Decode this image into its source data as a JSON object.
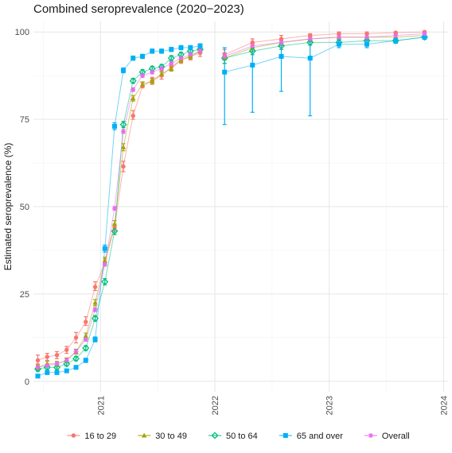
{
  "chart_data": {
    "type": "line",
    "title": "Combined seroprevalence (2020−2023)",
    "xlabel": "",
    "ylabel": "Estimated seroprevalence (%)",
    "x_axis": {
      "type": "date",
      "min": "2020-06-01",
      "max": "2024-01-15",
      "ticks": [
        "2021",
        "2022",
        "2023",
        "2024"
      ],
      "tick_dates": [
        "2021-01-01",
        "2022-01-01",
        "2023-01-01",
        "2024-01-01"
      ]
    },
    "y_axis": {
      "min": -3,
      "max": 103,
      "ticks": [
        0,
        25,
        50,
        75,
        100
      ]
    },
    "grid": true,
    "legend": {
      "position": "bottom"
    },
    "series": [
      {
        "name": "16 to 29",
        "color": "#F8766D",
        "marker": "circle",
        "points": [
          {
            "x": "2020-06-15",
            "y": 6,
            "lo": 5,
            "hi": 7.5
          },
          {
            "x": "2020-07-15",
            "y": 7,
            "lo": 6,
            "hi": 8
          },
          {
            "x": "2020-08-15",
            "y": 7.5,
            "lo": 6.5,
            "hi": 8.5
          },
          {
            "x": "2020-09-15",
            "y": 9,
            "lo": 8,
            "hi": 10
          },
          {
            "x": "2020-10-15",
            "y": 12.5,
            "lo": 11,
            "hi": 14
          },
          {
            "x": "2020-11-15",
            "y": 17,
            "lo": 16,
            "hi": 18.5
          },
          {
            "x": "2020-12-15",
            "y": 27,
            "lo": 26,
            "hi": 28.5
          },
          {
            "x": "2021-01-15",
            "y": 34,
            "lo": 33,
            "hi": 35
          },
          {
            "x": "2021-02-15",
            "y": 44,
            "lo": 43,
            "hi": 45
          },
          {
            "x": "2021-03-15",
            "y": 61.5,
            "lo": 60,
            "hi": 63
          },
          {
            "x": "2021-04-15",
            "y": 76,
            "lo": 75,
            "hi": 77.5
          },
          {
            "x": "2021-05-15",
            "y": 84.5,
            "lo": 84,
            "hi": 85.5
          },
          {
            "x": "2021-06-15",
            "y": 86,
            "lo": 85,
            "hi": 87
          },
          {
            "x": "2021-07-15",
            "y": 87.5,
            "lo": 86.5,
            "hi": 88.5
          },
          {
            "x": "2021-08-15",
            "y": 90,
            "lo": 89,
            "hi": 91
          },
          {
            "x": "2021-09-15",
            "y": 92,
            "lo": 91,
            "hi": 93
          },
          {
            "x": "2021-10-15",
            "y": 93,
            "lo": 92,
            "hi": 94
          },
          {
            "x": "2021-11-15",
            "y": 94,
            "lo": 93,
            "hi": 95
          },
          {
            "x": "2022-02-01",
            "y": 93.5,
            "lo": 92,
            "hi": 95
          },
          {
            "x": "2022-05-01",
            "y": 97,
            "lo": 96,
            "hi": 98
          },
          {
            "x": "2022-08-01",
            "y": 98,
            "lo": 97,
            "hi": 99
          },
          {
            "x": "2022-11-01",
            "y": 99,
            "lo": 98,
            "hi": 99.5
          },
          {
            "x": "2023-02-01",
            "y": 99.5,
            "lo": 99,
            "hi": 100
          },
          {
            "x": "2023-05-01",
            "y": 99.5,
            "lo": 99,
            "hi": 100
          },
          {
            "x": "2023-08-01",
            "y": 99.8,
            "lo": 99.4,
            "hi": 100
          },
          {
            "x": "2023-11-01",
            "y": 100,
            "lo": 99.6,
            "hi": 100
          }
        ]
      },
      {
        "name": "30 to 49",
        "color": "#A3A500",
        "marker": "triangle",
        "points": [
          {
            "x": "2020-06-15",
            "y": 4,
            "lo": 3.3,
            "hi": 4.7
          },
          {
            "x": "2020-07-15",
            "y": 5,
            "lo": 4.3,
            "hi": 5.7
          },
          {
            "x": "2020-08-15",
            "y": 5,
            "lo": 4.3,
            "hi": 5.7
          },
          {
            "x": "2020-09-15",
            "y": 6,
            "lo": 5.3,
            "hi": 6.7
          },
          {
            "x": "2020-10-15",
            "y": 8.5,
            "lo": 7.8,
            "hi": 9.2
          },
          {
            "x": "2020-11-15",
            "y": 13,
            "lo": 12.2,
            "hi": 13.8
          },
          {
            "x": "2020-12-15",
            "y": 22.5,
            "lo": 21.6,
            "hi": 23.4
          },
          {
            "x": "2021-01-15",
            "y": 34.5,
            "lo": 33.5,
            "hi": 35.5
          },
          {
            "x": "2021-02-15",
            "y": 45,
            "lo": 44,
            "hi": 46
          },
          {
            "x": "2021-03-15",
            "y": 67,
            "lo": 66,
            "hi": 68
          },
          {
            "x": "2021-04-15",
            "y": 81,
            "lo": 80.2,
            "hi": 81.8
          },
          {
            "x": "2021-05-15",
            "y": 85,
            "lo": 84.3,
            "hi": 85.7
          },
          {
            "x": "2021-06-15",
            "y": 86,
            "lo": 85.3,
            "hi": 86.7
          },
          {
            "x": "2021-07-15",
            "y": 88,
            "lo": 87.3,
            "hi": 88.7
          },
          {
            "x": "2021-08-15",
            "y": 89.5,
            "lo": 88.8,
            "hi": 90.2
          },
          {
            "x": "2021-09-15",
            "y": 92,
            "lo": 91.3,
            "hi": 92.7
          },
          {
            "x": "2021-10-15",
            "y": 93,
            "lo": 92.3,
            "hi": 93.7
          },
          {
            "x": "2021-11-15",
            "y": 94.5,
            "lo": 93.8,
            "hi": 95.2
          },
          {
            "x": "2022-02-01",
            "y": 92.5,
            "lo": 91,
            "hi": 94
          },
          {
            "x": "2022-05-01",
            "y": 95.5,
            "lo": 94.5,
            "hi": 96.5
          },
          {
            "x": "2022-08-01",
            "y": 97,
            "lo": 96,
            "hi": 98
          },
          {
            "x": "2022-11-01",
            "y": 98,
            "lo": 97.2,
            "hi": 98.8
          },
          {
            "x": "2023-02-01",
            "y": 98.5,
            "lo": 97.8,
            "hi": 99.2
          },
          {
            "x": "2023-05-01",
            "y": 98.5,
            "lo": 97.8,
            "hi": 99.2
          },
          {
            "x": "2023-08-01",
            "y": 98.5,
            "lo": 97.8,
            "hi": 99.2
          },
          {
            "x": "2023-11-01",
            "y": 99,
            "lo": 98.4,
            "hi": 99.6
          }
        ]
      },
      {
        "name": "50 to 64",
        "color": "#00BF7D",
        "marker": "diamond",
        "points": [
          {
            "x": "2020-06-15",
            "y": 3.5,
            "lo": 2.9,
            "hi": 4.1
          },
          {
            "x": "2020-07-15",
            "y": 4,
            "lo": 3.4,
            "hi": 4.6
          },
          {
            "x": "2020-08-15",
            "y": 4,
            "lo": 3.4,
            "hi": 4.6
          },
          {
            "x": "2020-09-15",
            "y": 5,
            "lo": 4.4,
            "hi": 5.6
          },
          {
            "x": "2020-10-15",
            "y": 6.5,
            "lo": 5.9,
            "hi": 7.1
          },
          {
            "x": "2020-11-15",
            "y": 9.5,
            "lo": 8.8,
            "hi": 10.2
          },
          {
            "x": "2020-12-15",
            "y": 18,
            "lo": 17.2,
            "hi": 18.8
          },
          {
            "x": "2021-01-15",
            "y": 28.5,
            "lo": 27.6,
            "hi": 29.4
          },
          {
            "x": "2021-02-15",
            "y": 43,
            "lo": 42,
            "hi": 44
          },
          {
            "x": "2021-03-15",
            "y": 73.5,
            "lo": 72.6,
            "hi": 74.4
          },
          {
            "x": "2021-04-15",
            "y": 86,
            "lo": 85.3,
            "hi": 86.7
          },
          {
            "x": "2021-05-15",
            "y": 88.5,
            "lo": 87.8,
            "hi": 89.2
          },
          {
            "x": "2021-06-15",
            "y": 89.5,
            "lo": 88.8,
            "hi": 90.2
          },
          {
            "x": "2021-07-15",
            "y": 90,
            "lo": 89.3,
            "hi": 90.7
          },
          {
            "x": "2021-08-15",
            "y": 92.5,
            "lo": 91.8,
            "hi": 93.2
          },
          {
            "x": "2021-09-15",
            "y": 93.5,
            "lo": 92.8,
            "hi": 94.2
          },
          {
            "x": "2021-10-15",
            "y": 94.5,
            "lo": 93.8,
            "hi": 95.2
          },
          {
            "x": "2021-11-15",
            "y": 95,
            "lo": 94.3,
            "hi": 95.7
          },
          {
            "x": "2022-02-01",
            "y": 92.5,
            "lo": 91,
            "hi": 94
          },
          {
            "x": "2022-05-01",
            "y": 94.5,
            "lo": 93.5,
            "hi": 95.5
          },
          {
            "x": "2022-08-01",
            "y": 96,
            "lo": 95,
            "hi": 97
          },
          {
            "x": "2022-11-01",
            "y": 97,
            "lo": 96.2,
            "hi": 97.8
          },
          {
            "x": "2023-02-01",
            "y": 97,
            "lo": 96.2,
            "hi": 97.8
          },
          {
            "x": "2023-05-01",
            "y": 97.5,
            "lo": 96.8,
            "hi": 98.2
          },
          {
            "x": "2023-08-01",
            "y": 97.5,
            "lo": 96.8,
            "hi": 98.2
          },
          {
            "x": "2023-11-01",
            "y": 98.5,
            "lo": 97.9,
            "hi": 99.1
          }
        ]
      },
      {
        "name": "65 and over",
        "color": "#00B0F6",
        "marker": "square",
        "points": [
          {
            "x": "2020-06-15",
            "y": 1.5,
            "lo": 1,
            "hi": 2
          },
          {
            "x": "2020-07-15",
            "y": 2.5,
            "lo": 2,
            "hi": 3
          },
          {
            "x": "2020-08-15",
            "y": 2.5,
            "lo": 2,
            "hi": 3
          },
          {
            "x": "2020-09-15",
            "y": 3,
            "lo": 2.5,
            "hi": 3.5
          },
          {
            "x": "2020-10-15",
            "y": 4,
            "lo": 3.5,
            "hi": 4.5
          },
          {
            "x": "2020-11-15",
            "y": 6,
            "lo": 5.4,
            "hi": 6.6
          },
          {
            "x": "2020-12-15",
            "y": 12,
            "lo": 11.3,
            "hi": 12.7
          },
          {
            "x": "2021-01-15",
            "y": 38,
            "lo": 37,
            "hi": 39
          },
          {
            "x": "2021-02-15",
            "y": 73,
            "lo": 72,
            "hi": 74
          },
          {
            "x": "2021-03-15",
            "y": 89,
            "lo": 88.3,
            "hi": 89.7
          },
          {
            "x": "2021-04-15",
            "y": 92.5,
            "lo": 91.9,
            "hi": 93.1
          },
          {
            "x": "2021-05-15",
            "y": 93,
            "lo": 92.4,
            "hi": 93.6
          },
          {
            "x": "2021-06-15",
            "y": 94.5,
            "lo": 93.9,
            "hi": 95.1
          },
          {
            "x": "2021-07-15",
            "y": 94.5,
            "lo": 93.9,
            "hi": 95.1
          },
          {
            "x": "2021-08-15",
            "y": 95,
            "lo": 94.4,
            "hi": 95.6
          },
          {
            "x": "2021-09-15",
            "y": 95.5,
            "lo": 94.9,
            "hi": 96.1
          },
          {
            "x": "2021-10-15",
            "y": 95.5,
            "lo": 94.9,
            "hi": 96.1
          },
          {
            "x": "2021-11-15",
            "y": 96,
            "lo": 95.4,
            "hi": 96.6
          },
          {
            "x": "2022-02-01",
            "y": 88.5,
            "lo": 73.5,
            "hi": 95.5
          },
          {
            "x": "2022-05-01",
            "y": 90.5,
            "lo": 77,
            "hi": 97
          },
          {
            "x": "2022-08-01",
            "y": 93,
            "lo": 83,
            "hi": 97.5
          },
          {
            "x": "2022-11-01",
            "y": 92.5,
            "lo": 76,
            "hi": 98.5
          },
          {
            "x": "2023-02-01",
            "y": 96.5,
            "lo": 95.5,
            "hi": 97.5
          },
          {
            "x": "2023-05-01",
            "y": 96.5,
            "lo": 95.5,
            "hi": 97.5
          },
          {
            "x": "2023-08-01",
            "y": 97.5,
            "lo": 96.8,
            "hi": 98.2
          },
          {
            "x": "2023-11-01",
            "y": 98.5,
            "lo": 97.9,
            "hi": 99.1
          }
        ]
      },
      {
        "name": "Overall",
        "color": "#E76BF3",
        "marker": "asterisk",
        "points": [
          {
            "x": "2020-06-15",
            "y": 4,
            "lo": 3.6,
            "hi": 4.4
          },
          {
            "x": "2020-07-15",
            "y": 4.5,
            "lo": 4.1,
            "hi": 4.9
          },
          {
            "x": "2020-08-15",
            "y": 5,
            "lo": 4.6,
            "hi": 5.4
          },
          {
            "x": "2020-09-15",
            "y": 6,
            "lo": 5.6,
            "hi": 6.4
          },
          {
            "x": "2020-10-15",
            "y": 8.5,
            "lo": 8,
            "hi": 9
          },
          {
            "x": "2020-11-15",
            "y": 12,
            "lo": 11.5,
            "hi": 12.5
          },
          {
            "x": "2020-12-15",
            "y": 20.5,
            "lo": 20,
            "hi": 21
          },
          {
            "x": "2021-01-15",
            "y": 33.5,
            "lo": 33,
            "hi": 34
          },
          {
            "x": "2021-02-15",
            "y": 49.5,
            "lo": 49,
            "hi": 50
          },
          {
            "x": "2021-03-15",
            "y": 71.5,
            "lo": 71,
            "hi": 72
          },
          {
            "x": "2021-04-15",
            "y": 83.5,
            "lo": 83,
            "hi": 84
          },
          {
            "x": "2021-05-15",
            "y": 87.5,
            "lo": 87,
            "hi": 88
          },
          {
            "x": "2021-06-15",
            "y": 88.5,
            "lo": 88,
            "hi": 89
          },
          {
            "x": "2021-07-15",
            "y": 89.5,
            "lo": 89,
            "hi": 90
          },
          {
            "x": "2021-08-15",
            "y": 91,
            "lo": 90.5,
            "hi": 91.5
          },
          {
            "x": "2021-09-15",
            "y": 92.5,
            "lo": 92,
            "hi": 93
          },
          {
            "x": "2021-10-15",
            "y": 93.5,
            "lo": 93,
            "hi": 94
          },
          {
            "x": "2021-11-15",
            "y": 94.5,
            "lo": 94,
            "hi": 95
          },
          {
            "x": "2022-02-01",
            "y": 93,
            "lo": 92,
            "hi": 94
          },
          {
            "x": "2022-05-01",
            "y": 96,
            "lo": 95.3,
            "hi": 96.7
          },
          {
            "x": "2022-08-01",
            "y": 97,
            "lo": 96.4,
            "hi": 97.6
          },
          {
            "x": "2022-11-01",
            "y": 98,
            "lo": 97.5,
            "hi": 98.5
          },
          {
            "x": "2023-02-01",
            "y": 98.5,
            "lo": 98,
            "hi": 99
          },
          {
            "x": "2023-05-01",
            "y": 98.5,
            "lo": 98,
            "hi": 99
          },
          {
            "x": "2023-08-01",
            "y": 99,
            "lo": 98.6,
            "hi": 99.4
          },
          {
            "x": "2023-11-01",
            "y": 99.5,
            "lo": 99.1,
            "hi": 99.9
          }
        ]
      }
    ]
  }
}
